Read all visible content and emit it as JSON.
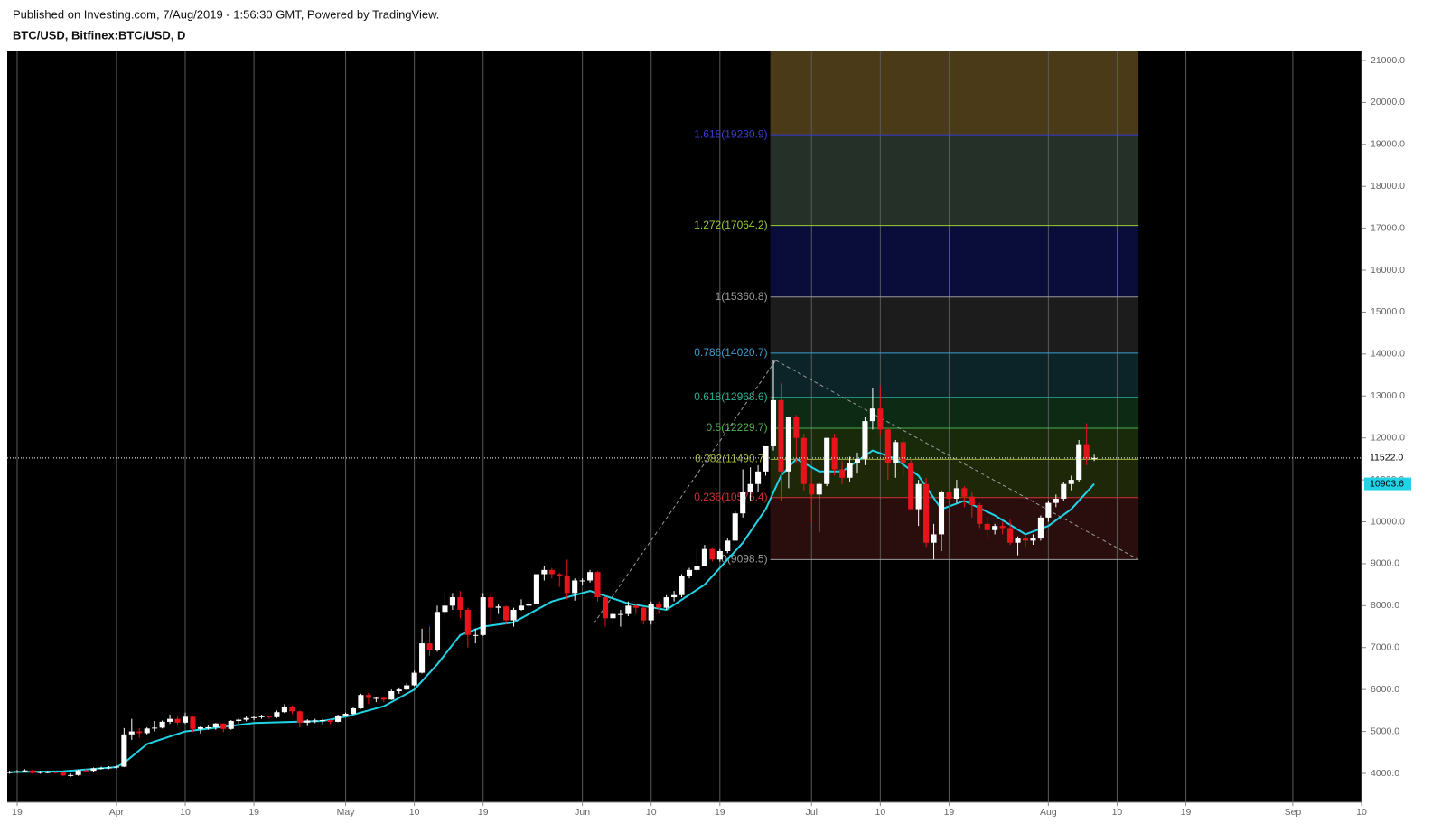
{
  "header": {
    "published": "Published on Investing.com, 7/Aug/2019 - 1:56:30 GMT, Powered by TradingView.",
    "symbol": "BTC/USD, Bitfinex:BTC/USD, D"
  },
  "chart_data": {
    "type": "candlestick",
    "up_color": "#ffffff",
    "down_color": "#e8141c",
    "background": "#000000",
    "grid": true,
    "grid_color": "#5a5a5a",
    "xlim": [
      -1.3,
      176
    ],
    "ylim": [
      3310,
      21215
    ],
    "xticks": [
      {
        "value": 0,
        "label": "19"
      },
      {
        "value": 13,
        "label": "Apr"
      },
      {
        "value": 22,
        "label": "10"
      },
      {
        "value": 31,
        "label": "19"
      },
      {
        "value": 43,
        "label": "May"
      },
      {
        "value": 52,
        "label": "10"
      },
      {
        "value": 61,
        "label": "19"
      },
      {
        "value": 74,
        "label": "Jun"
      },
      {
        "value": 83,
        "label": "10"
      },
      {
        "value": 92,
        "label": "19"
      },
      {
        "value": 104,
        "label": "Jul"
      },
      {
        "value": 113,
        "label": "10"
      },
      {
        "value": 122,
        "label": "19"
      },
      {
        "value": 135,
        "label": "Aug"
      },
      {
        "value": 144,
        "label": "10"
      },
      {
        "value": 153,
        "label": "19"
      },
      {
        "value": 167,
        "label": "Sep"
      },
      {
        "value": 176,
        "label": "10"
      }
    ],
    "yticks": [
      {
        "value": 4000,
        "label": "4000.0"
      },
      {
        "value": 5000,
        "label": "5000.0"
      },
      {
        "value": 6000,
        "label": "6000.0"
      },
      {
        "value": 7000,
        "label": "7000.0"
      },
      {
        "value": 8000,
        "label": "8000.0"
      },
      {
        "value": 9000,
        "label": "9000.0"
      },
      {
        "value": 10000,
        "label": "10000.0"
      },
      {
        "value": 11000,
        "label": "11000.0"
      },
      {
        "value": 12000,
        "label": "12000.0"
      },
      {
        "value": 13000,
        "label": "13000.0"
      },
      {
        "value": 14000,
        "label": "14000.0"
      },
      {
        "value": 15000,
        "label": "15000.0"
      },
      {
        "value": 16000,
        "label": "16000.0"
      },
      {
        "value": 17000,
        "label": "17000.0"
      },
      {
        "value": 18000,
        "label": "18000.0"
      },
      {
        "value": 19000,
        "label": "19000.0"
      },
      {
        "value": 20000,
        "label": "20000.0"
      },
      {
        "value": 21000,
        "label": "21000.0"
      }
    ],
    "x": [
      -1,
      0,
      1,
      2,
      3,
      4,
      5,
      6,
      7,
      8,
      9,
      10,
      11,
      12,
      13,
      14,
      15,
      16,
      17,
      18,
      19,
      20,
      21,
      22,
      23,
      24,
      25,
      26,
      27,
      28,
      29,
      30,
      31,
      32,
      33,
      34,
      35,
      36,
      37,
      38,
      39,
      40,
      41,
      42,
      43,
      44,
      45,
      46,
      47,
      48,
      49,
      50,
      51,
      52,
      53,
      54,
      55,
      56,
      57,
      58,
      59,
      60,
      61,
      62,
      63,
      64,
      65,
      66,
      67,
      68,
      69,
      70,
      71,
      72,
      73,
      74,
      75,
      76,
      77,
      78,
      79,
      80,
      81,
      82,
      83,
      84,
      85,
      86,
      87,
      88,
      89,
      90,
      91,
      92,
      93,
      94,
      95,
      96,
      97,
      98,
      99,
      100,
      101,
      102,
      103,
      104,
      105,
      106,
      107,
      108,
      109,
      110,
      111,
      112,
      113,
      114,
      115,
      116,
      117,
      118,
      119,
      120,
      121,
      122,
      123,
      124,
      125,
      126,
      127,
      128,
      129,
      130,
      131,
      132,
      133,
      134,
      135,
      136,
      137,
      138,
      139,
      140,
      141
    ],
    "ohlc": [
      [
        4010,
        4060,
        3990,
        4030
      ],
      [
        4030,
        4080,
        4010,
        4050
      ],
      [
        4050,
        4100,
        4030,
        4070
      ],
      [
        4070,
        4090,
        3990,
        4010
      ],
      [
        4010,
        4060,
        3990,
        4030
      ],
      [
        4030,
        4060,
        4000,
        4030
      ],
      [
        4030,
        4050,
        3990,
        4020
      ],
      [
        4020,
        4040,
        3930,
        3950
      ],
      [
        3950,
        4000,
        3920,
        3960
      ],
      [
        3960,
        4090,
        3940,
        4070
      ],
      [
        4070,
        4100,
        4030,
        4060
      ],
      [
        4060,
        4140,
        4040,
        4120
      ],
      [
        4120,
        4160,
        4090,
        4130
      ],
      [
        4130,
        4170,
        4100,
        4140
      ],
      [
        4140,
        4200,
        4110,
        4160
      ],
      [
        4160,
        5080,
        4150,
        4930
      ],
      [
        4930,
        5300,
        4800,
        5000
      ],
      [
        5000,
        5080,
        4850,
        4960
      ],
      [
        4960,
        5100,
        4930,
        5070
      ],
      [
        5070,
        5250,
        5000,
        5090
      ],
      [
        5090,
        5260,
        5070,
        5230
      ],
      [
        5230,
        5400,
        5180,
        5300
      ],
      [
        5300,
        5350,
        5150,
        5210
      ],
      [
        5210,
        5450,
        5180,
        5350
      ],
      [
        5350,
        5360,
        4980,
        5060
      ],
      [
        5060,
        5120,
        4950,
        5100
      ],
      [
        5100,
        5140,
        5040,
        5100
      ],
      [
        5100,
        5200,
        5040,
        5190
      ],
      [
        5190,
        5190,
        4980,
        5060
      ],
      [
        5060,
        5270,
        5040,
        5250
      ],
      [
        5250,
        5310,
        5180,
        5280
      ],
      [
        5280,
        5360,
        5240,
        5320
      ],
      [
        5320,
        5370,
        5270,
        5340
      ],
      [
        5340,
        5400,
        5300,
        5360
      ],
      [
        5360,
        5380,
        5300,
        5340
      ],
      [
        5340,
        5500,
        5320,
        5460
      ],
      [
        5460,
        5650,
        5440,
        5580
      ],
      [
        5580,
        5620,
        5420,
        5480
      ],
      [
        5480,
        5500,
        5100,
        5210
      ],
      [
        5210,
        5290,
        5130,
        5260
      ],
      [
        5260,
        5300,
        5200,
        5260
      ],
      [
        5260,
        5300,
        5170,
        5270
      ],
      [
        5270,
        5280,
        5170,
        5230
      ],
      [
        5230,
        5400,
        5220,
        5380
      ],
      [
        5380,
        5450,
        5360,
        5420
      ],
      [
        5420,
        5570,
        5400,
        5550
      ],
      [
        5550,
        5900,
        5540,
        5870
      ],
      [
        5870,
        5920,
        5650,
        5800
      ],
      [
        5800,
        5830,
        5700,
        5800
      ],
      [
        5800,
        5830,
        5700,
        5760
      ],
      [
        5760,
        6000,
        5750,
        5960
      ],
      [
        5960,
        6050,
        5900,
        6000
      ],
      [
        6000,
        6150,
        5980,
        6100
      ],
      [
        6100,
        6450,
        6080,
        6400
      ],
      [
        6400,
        7450,
        6380,
        7100
      ],
      [
        7100,
        7500,
        6800,
        6950
      ],
      [
        6950,
        8000,
        6900,
        7850
      ],
      [
        7850,
        8300,
        7700,
        8000
      ],
      [
        8000,
        8300,
        7900,
        8200
      ],
      [
        8200,
        8350,
        7700,
        7900
      ],
      [
        7900,
        7950,
        7000,
        7300
      ],
      [
        7300,
        7450,
        7100,
        7300
      ],
      [
        7300,
        8300,
        7280,
        8200
      ],
      [
        8200,
        8250,
        7600,
        7950
      ],
      [
        7950,
        8050,
        7800,
        7980
      ],
      [
        7980,
        8000,
        7550,
        7650
      ],
      [
        7650,
        7950,
        7500,
        7900
      ],
      [
        7900,
        8150,
        7880,
        8000
      ],
      [
        8000,
        8100,
        7950,
        8050
      ],
      [
        8050,
        8750,
        8040,
        8750
      ],
      [
        8750,
        8950,
        8600,
        8850
      ],
      [
        8850,
        8900,
        8650,
        8750
      ],
      [
        8750,
        8780,
        8450,
        8700
      ],
      [
        8700,
        9100,
        8150,
        8300
      ],
      [
        8300,
        8650,
        8120,
        8600
      ],
      [
        8600,
        8650,
        8500,
        8600
      ],
      [
        8600,
        8850,
        8550,
        8800
      ],
      [
        8800,
        8820,
        8100,
        8200
      ],
      [
        8200,
        8200,
        7500,
        7700
      ],
      [
        7700,
        7900,
        7550,
        7800
      ],
      [
        7800,
        7900,
        7500,
        7800
      ],
      [
        7800,
        8100,
        7750,
        8000
      ],
      [
        8000,
        8050,
        7800,
        7950
      ],
      [
        7950,
        7980,
        7550,
        7650
      ],
      [
        7650,
        8100,
        7550,
        8050
      ],
      [
        8050,
        8100,
        7800,
        7950
      ],
      [
        7950,
        8250,
        7900,
        8200
      ],
      [
        8200,
        8350,
        8100,
        8250
      ],
      [
        8250,
        8750,
        8200,
        8700
      ],
      [
        8700,
        8900,
        8650,
        8850
      ],
      [
        8850,
        9350,
        8800,
        8950
      ],
      [
        8950,
        9450,
        8950,
        9350
      ],
      [
        9350,
        9380,
        9050,
        9100
      ],
      [
        9100,
        9350,
        9050,
        9300
      ],
      [
        9300,
        9600,
        9250,
        9550
      ],
      [
        9550,
        10250,
        9550,
        10200
      ],
      [
        10200,
        11250,
        10100,
        10700
      ],
      [
        10700,
        11300,
        10500,
        10900
      ],
      [
        10900,
        11350,
        10700,
        11200
      ],
      [
        11200,
        11800,
        11100,
        11800
      ],
      [
        11800,
        13850,
        11700,
        12900
      ],
      [
        12900,
        13300,
        10500,
        11200
      ],
      [
        11200,
        12500,
        10800,
        12500
      ],
      [
        12500,
        12550,
        11400,
        12000
      ],
      [
        12000,
        12100,
        10750,
        10900
      ],
      [
        10900,
        11200,
        10000,
        10650
      ],
      [
        10650,
        10950,
        9750,
        10900
      ],
      [
        10900,
        12000,
        10850,
        12000
      ],
      [
        12000,
        12100,
        11100,
        11250
      ],
      [
        11250,
        11450,
        10900,
        11050
      ],
      [
        11050,
        11550,
        10950,
        11400
      ],
      [
        11400,
        11650,
        11150,
        11500
      ],
      [
        11500,
        12500,
        11350,
        12400
      ],
      [
        12400,
        13200,
        12200,
        12700
      ],
      [
        12700,
        13250,
        12050,
        12200
      ],
      [
        12200,
        12250,
        11000,
        11400
      ],
      [
        11400,
        11950,
        11050,
        11900
      ],
      [
        11900,
        12000,
        11100,
        11400
      ],
      [
        11400,
        11500,
        10300,
        10300
      ],
      [
        10300,
        11000,
        9900,
        10900
      ],
      [
        10900,
        11050,
        9400,
        9500
      ],
      [
        9500,
        9950,
        9100,
        9700
      ],
      [
        9700,
        10750,
        9300,
        10700
      ],
      [
        10700,
        10800,
        10150,
        10550
      ],
      [
        10550,
        11000,
        10450,
        10800
      ],
      [
        10800,
        10850,
        10350,
        10600
      ],
      [
        10600,
        10700,
        10100,
        10400
      ],
      [
        10400,
        10450,
        9850,
        9950
      ],
      [
        9950,
        10100,
        9600,
        9800
      ],
      [
        9800,
        9950,
        9700,
        9900
      ],
      [
        9900,
        10000,
        9700,
        9850
      ],
      [
        9850,
        10050,
        9450,
        9500
      ],
      [
        9500,
        9650,
        9200,
        9600
      ],
      [
        9600,
        9700,
        9400,
        9550
      ],
      [
        9550,
        9700,
        9450,
        9600
      ],
      [
        9600,
        10150,
        9550,
        10100
      ],
      [
        10100,
        10500,
        10000,
        10450
      ],
      [
        10450,
        10650,
        10350,
        10550
      ],
      [
        10550,
        10950,
        10500,
        10900
      ],
      [
        10900,
        11100,
        10750,
        11000
      ],
      [
        11000,
        11950,
        10950,
        11850
      ],
      [
        11850,
        12350,
        11350,
        11500
      ],
      [
        11500,
        11600,
        11450,
        11522
      ]
    ],
    "ma": {
      "color": "#22d3e6",
      "x": [
        -1,
        6,
        13,
        14,
        17,
        22,
        31,
        40,
        43,
        48,
        52,
        55,
        58,
        61,
        65,
        70,
        75,
        80,
        85,
        90,
        95,
        98,
        100,
        102,
        105,
        108,
        112,
        115,
        118,
        121,
        124,
        128,
        132,
        135,
        138,
        141
      ],
      "values": [
        4030,
        4050,
        4150,
        4250,
        4700,
        5000,
        5200,
        5250,
        5350,
        5600,
        6000,
        6600,
        7300,
        7500,
        7600,
        8100,
        8350,
        8050,
        7900,
        8500,
        9500,
        10300,
        11100,
        11500,
        11200,
        11200,
        11700,
        11500,
        11100,
        10300,
        10500,
        10150,
        9700,
        9900,
        10300,
        10903.6
      ]
    },
    "price_labels": [
      {
        "value": 11522,
        "label": "11522.0",
        "fill": "#ffffff",
        "dotted_line": true
      },
      {
        "value": 10903.6,
        "label": "10903.6",
        "fill": "#22d3e6",
        "dotted_line": false
      }
    ],
    "fib": {
      "x": [
        98.6,
        146.8
      ],
      "levels": [
        {
          "label": "0(9098.5)",
          "value": 9098.5,
          "color": "#9a9a9a",
          "fill": "#2a0e0e"
        },
        {
          "label": "0.236(10576.4)",
          "value": 10576.4,
          "color": "#d03030",
          "fill": "#1e2808"
        },
        {
          "label": "0.382(11490.7)",
          "value": 11490.7,
          "color": "#9fb23a",
          "fill": "#182a0a"
        },
        {
          "label": "0.5(12229.7)",
          "value": 12229.7,
          "color": "#4caf50",
          "fill": "#0c2a14"
        },
        {
          "label": "0.618(12968.6)",
          "value": 12968.6,
          "color": "#2ab090",
          "fill": "#0c2428"
        },
        {
          "label": "0.786(14020.7)",
          "value": 14020.7,
          "color": "#3a9fd0",
          "fill": "#1c1c1c"
        },
        {
          "label": "1(15360.8)",
          "value": 15360.8,
          "color": "#9a9a9a",
          "fill": "#0a0c3a"
        },
        {
          "label": "1.272(17064.2)",
          "value": 17064.2,
          "color": "#9acd32",
          "fill": "#253029"
        },
        {
          "label": "1.618(19230.9)",
          "value": 19230.9,
          "color": "#3b3bd0",
          "fill": "#4a3a18"
        }
      ]
    },
    "trendlines": [
      {
        "x": [
          75.5,
          99.3
        ],
        "y": [
          7577,
          13850
        ]
      },
      {
        "x": [
          99.3,
          146.8
        ],
        "y": [
          13850,
          9098.5
        ]
      }
    ]
  }
}
